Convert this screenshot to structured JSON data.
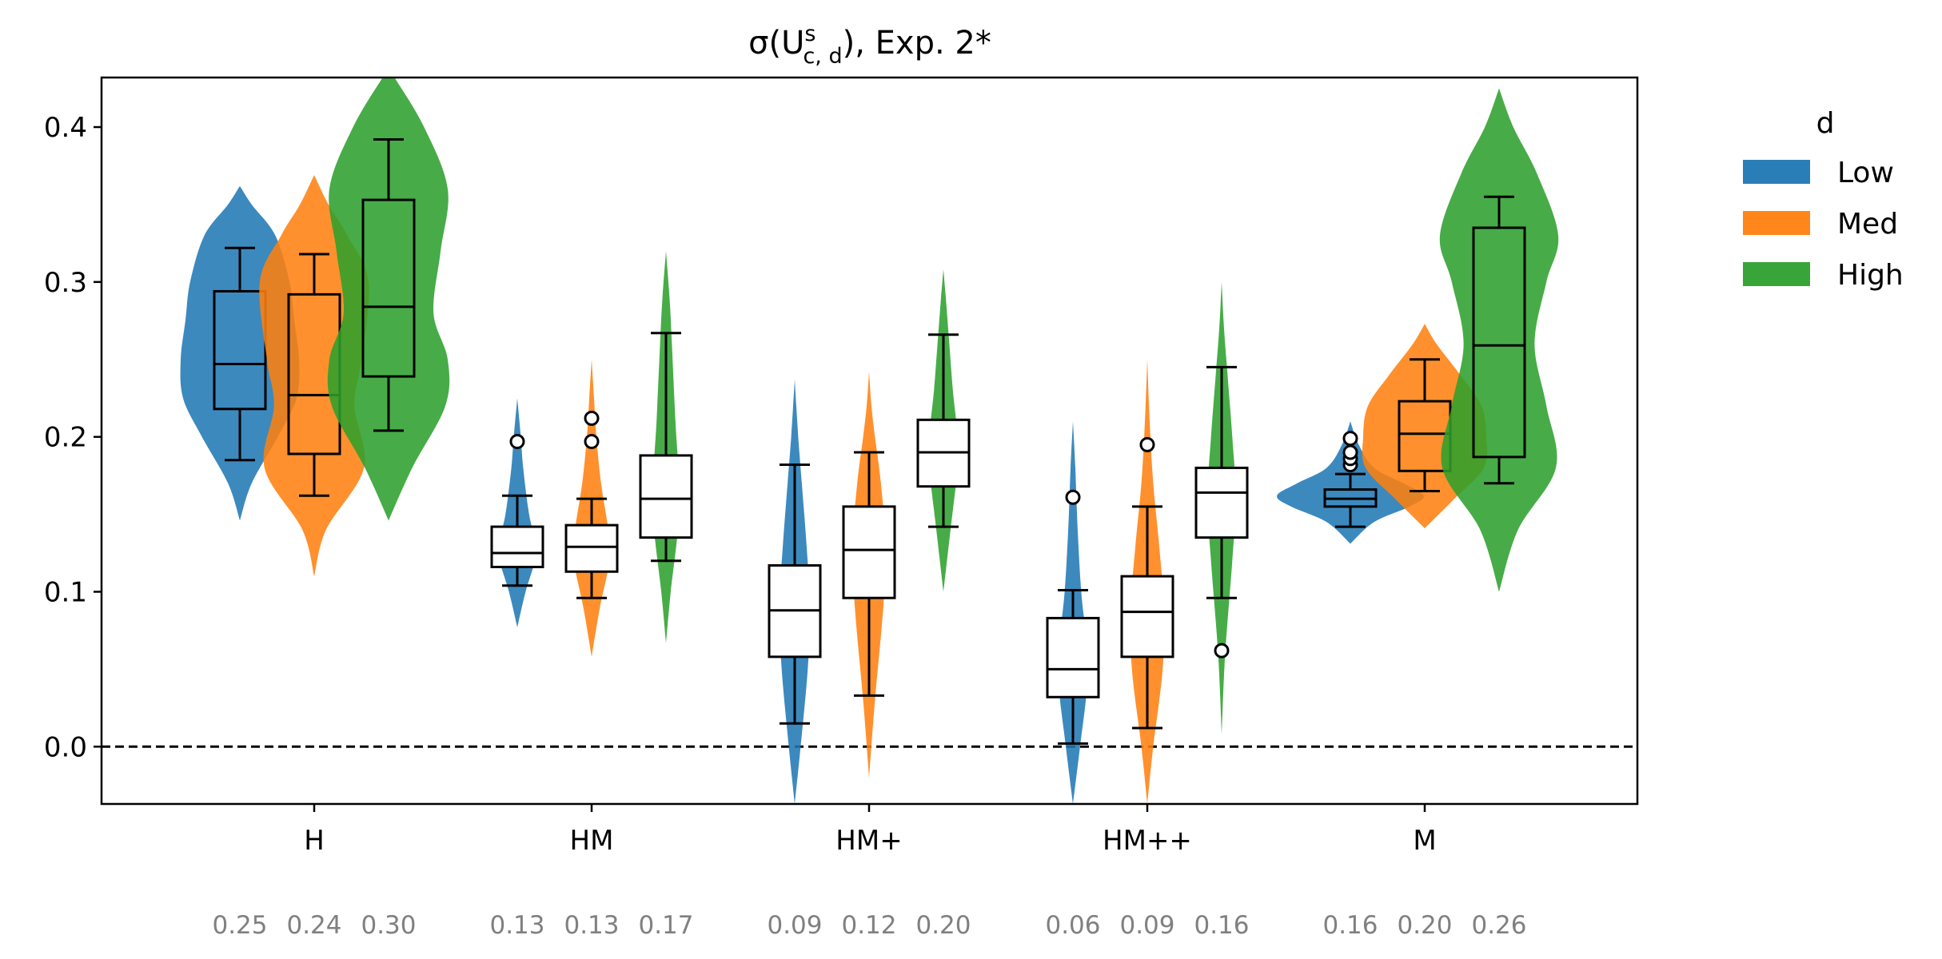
{
  "chart_data": {
    "type": "violin",
    "title": "σ(U^s_{c,d}), Exp. 2*",
    "title_main": "σ(U",
    "title_sup": "s",
    "title_sub": "c, d",
    "title_tail": "), Exp. 2*",
    "xlabel": "",
    "ylabel": "",
    "categories": [
      "H",
      "HM",
      "HM+",
      "HM++",
      "M"
    ],
    "ylim": [
      -0.037,
      0.432
    ],
    "yticks": [
      "0.0",
      "0.1",
      "0.2",
      "0.3",
      "0.4"
    ],
    "ytick_values": [
      0.0,
      0.1,
      0.2,
      0.3,
      0.4
    ],
    "reference_line": 0.0,
    "legend": {
      "title": "d",
      "placement": "outside-right",
      "entries": [
        {
          "name": "Low",
          "color": "#1f77b4"
        },
        {
          "name": "Med",
          "color": "#ff7f0e"
        },
        {
          "name": "High",
          "color": "#2ca02c"
        }
      ]
    },
    "series": [
      {
        "name": "Low",
        "color": "#1f77b4",
        "groups": [
          {
            "category": "H",
            "mean_label": "0.25",
            "whisker": [
              0.185,
              0.322
            ],
            "box": [
              0.218,
              0.294
            ],
            "median": 0.247,
            "outliers": [],
            "violin": [
              [
                0.146,
                0
              ],
              [
                0.17,
                0.1
              ],
              [
                0.2,
                0.32
              ],
              [
                0.225,
                0.48
              ],
              [
                0.25,
                0.5
              ],
              [
                0.275,
                0.46
              ],
              [
                0.3,
                0.42
              ],
              [
                0.33,
                0.3
              ],
              [
                0.35,
                0.1
              ],
              [
                0.362,
                0
              ]
            ]
          },
          {
            "category": "HM",
            "mean_label": "0.13",
            "whisker": [
              0.104,
              0.162
            ],
            "box": [
              0.116,
              0.142
            ],
            "median": 0.125,
            "outliers": [
              0.197
            ],
            "violin": [
              [
                0.077,
                0
              ],
              [
                0.1,
                0.07
              ],
              [
                0.12,
                0.15
              ],
              [
                0.13,
                0.16
              ],
              [
                0.15,
                0.1
              ],
              [
                0.18,
                0.05
              ],
              [
                0.2,
                0.03
              ],
              [
                0.225,
                0
              ]
            ]
          },
          {
            "category": "HM+",
            "mean_label": "0.09",
            "whisker": [
              0.015,
              0.182
            ],
            "box": [
              0.058,
              0.117
            ],
            "median": 0.088,
            "outliers": [],
            "violin": [
              [
                -0.037,
                0
              ],
              [
                0.0,
                0.05
              ],
              [
                0.05,
                0.11
              ],
              [
                0.09,
                0.13
              ],
              [
                0.13,
                0.1
              ],
              [
                0.17,
                0.06
              ],
              [
                0.2,
                0.03
              ],
              [
                0.237,
                0
              ]
            ]
          },
          {
            "category": "HM++",
            "mean_label": "0.06",
            "whisker": [
              0.002,
              0.101
            ],
            "box": [
              0.032,
              0.083
            ],
            "median": 0.05,
            "outliers": [
              0.161
            ],
            "violin": [
              [
                -0.037,
                0
              ],
              [
                0.0,
                0.06
              ],
              [
                0.04,
                0.12
              ],
              [
                0.07,
                0.11
              ],
              [
                0.1,
                0.07
              ],
              [
                0.14,
                0.04
              ],
              [
                0.18,
                0.02
              ],
              [
                0.21,
                0
              ]
            ]
          },
          {
            "category": "M",
            "mean_label": "0.16",
            "whisker": [
              0.142,
              0.176
            ],
            "box": [
              0.155,
              0.166
            ],
            "median": 0.16,
            "outliers": [
              0.182,
              0.186,
              0.19,
              0.199
            ],
            "violin": [
              [
                0.131,
                0
              ],
              [
                0.145,
                0.2
              ],
              [
                0.155,
                0.5
              ],
              [
                0.162,
                0.62
              ],
              [
                0.17,
                0.45
              ],
              [
                0.18,
                0.2
              ],
              [
                0.195,
                0.07
              ],
              [
                0.21,
                0
              ]
            ]
          }
        ]
      },
      {
        "name": "Med",
        "color": "#ff7f0e",
        "groups": [
          {
            "category": "H",
            "mean_label": "0.24",
            "whisker": [
              0.162,
              0.318
            ],
            "box": [
              0.189,
              0.292
            ],
            "median": 0.227,
            "outliers": [],
            "violin": [
              [
                0.11,
                0
              ],
              [
                0.14,
                0.1
              ],
              [
                0.18,
                0.42
              ],
              [
                0.22,
                0.34
              ],
              [
                0.25,
                0.4
              ],
              [
                0.3,
                0.46
              ],
              [
                0.33,
                0.28
              ],
              [
                0.35,
                0.12
              ],
              [
                0.369,
                0
              ]
            ]
          },
          {
            "category": "HM",
            "mean_label": "0.13",
            "whisker": [
              0.096,
              0.16
            ],
            "box": [
              0.113,
              0.143
            ],
            "median": 0.129,
            "outliers": [
              0.197,
              0.212
            ],
            "violin": [
              [
                0.058,
                0
              ],
              [
                0.09,
                0.07
              ],
              [
                0.12,
                0.15
              ],
              [
                0.14,
                0.14
              ],
              [
                0.17,
                0.08
              ],
              [
                0.2,
                0.04
              ],
              [
                0.225,
                0.02
              ],
              [
                0.25,
                0
              ]
            ]
          },
          {
            "category": "HM+",
            "mean_label": "0.12",
            "whisker": [
              0.033,
              0.19
            ],
            "box": [
              0.096,
              0.155
            ],
            "median": 0.127,
            "outliers": [],
            "violin": [
              [
                -0.02,
                0
              ],
              [
                0.03,
                0.05
              ],
              [
                0.09,
                0.12
              ],
              [
                0.13,
                0.14
              ],
              [
                0.17,
                0.1
              ],
              [
                0.2,
                0.05
              ],
              [
                0.22,
                0.02
              ],
              [
                0.242,
                0
              ]
            ]
          },
          {
            "category": "HM++",
            "mean_label": "0.09",
            "whisker": [
              0.012,
              0.155
            ],
            "box": [
              0.058,
              0.11
            ],
            "median": 0.087,
            "outliers": [
              0.195
            ],
            "violin": [
              [
                -0.037,
                0
              ],
              [
                0.0,
                0.05
              ],
              [
                0.05,
                0.13
              ],
              [
                0.09,
                0.14
              ],
              [
                0.13,
                0.1
              ],
              [
                0.17,
                0.05
              ],
              [
                0.21,
                0.02
              ],
              [
                0.25,
                0
              ]
            ]
          },
          {
            "category": "M",
            "mean_label": "0.20",
            "whisker": [
              0.165,
              0.25
            ],
            "box": [
              0.178,
              0.223
            ],
            "median": 0.202,
            "outliers": [],
            "violin": [
              [
                0.141,
                0
              ],
              [
                0.16,
                0.25
              ],
              [
                0.18,
                0.5
              ],
              [
                0.2,
                0.52
              ],
              [
                0.22,
                0.48
              ],
              [
                0.24,
                0.3
              ],
              [
                0.26,
                0.1
              ],
              [
                0.273,
                0
              ]
            ]
          }
        ]
      },
      {
        "name": "High",
        "color": "#2ca02c",
        "groups": [
          {
            "category": "H",
            "mean_label": "0.30",
            "whisker": [
              0.204,
              0.392
            ],
            "box": [
              0.239,
              0.353
            ],
            "median": 0.284,
            "outliers": [],
            "violin": [
              [
                0.146,
                0
              ],
              [
                0.18,
                0.2
              ],
              [
                0.22,
                0.48
              ],
              [
                0.25,
                0.5
              ],
              [
                0.28,
                0.38
              ],
              [
                0.32,
                0.44
              ],
              [
                0.36,
                0.5
              ],
              [
                0.4,
                0.3
              ],
              [
                0.432,
                0.05
              ]
            ]
          },
          {
            "category": "HM",
            "mean_label": "0.17",
            "whisker": [
              0.12,
              0.267
            ],
            "box": [
              0.135,
              0.188
            ],
            "median": 0.16,
            "outliers": [],
            "violin": [
              [
                0.067,
                0
              ],
              [
                0.1,
                0.04
              ],
              [
                0.14,
                0.1
              ],
              [
                0.17,
                0.11
              ],
              [
                0.21,
                0.08
              ],
              [
                0.26,
                0.05
              ],
              [
                0.29,
                0.03
              ],
              [
                0.32,
                0
              ]
            ]
          },
          {
            "category": "HM+",
            "mean_label": "0.20",
            "whisker": [
              0.142,
              0.266
            ],
            "box": [
              0.168,
              0.211
            ],
            "median": 0.19,
            "outliers": [],
            "violin": [
              [
                0.1,
                0
              ],
              [
                0.14,
                0.06
              ],
              [
                0.18,
                0.12
              ],
              [
                0.2,
                0.12
              ],
              [
                0.23,
                0.08
              ],
              [
                0.26,
                0.05
              ],
              [
                0.29,
                0.02
              ],
              [
                0.308,
                0
              ]
            ]
          },
          {
            "category": "HM++",
            "mean_label": "0.16",
            "whisker": [
              0.096,
              0.245
            ],
            "box": [
              0.135,
              0.18
            ],
            "median": 0.164,
            "outliers": [
              0.062
            ],
            "violin": [
              [
                0.008,
                0
              ],
              [
                0.06,
                0.03
              ],
              [
                0.12,
                0.09
              ],
              [
                0.16,
                0.12
              ],
              [
                0.2,
                0.09
              ],
              [
                0.24,
                0.05
              ],
              [
                0.27,
                0.02
              ],
              [
                0.3,
                0
              ]
            ]
          },
          {
            "category": "M",
            "mean_label": "0.26",
            "whisker": [
              0.17,
              0.355
            ],
            "box": [
              0.187,
              0.335
            ],
            "median": 0.259,
            "outliers": [],
            "violin": [
              [
                0.1,
                0
              ],
              [
                0.14,
                0.16
              ],
              [
                0.18,
                0.48
              ],
              [
                0.22,
                0.4
              ],
              [
                0.26,
                0.3
              ],
              [
                0.3,
                0.4
              ],
              [
                0.33,
                0.5
              ],
              [
                0.37,
                0.32
              ],
              [
                0.4,
                0.12
              ],
              [
                0.425,
                0
              ]
            ]
          }
        ]
      }
    ]
  }
}
